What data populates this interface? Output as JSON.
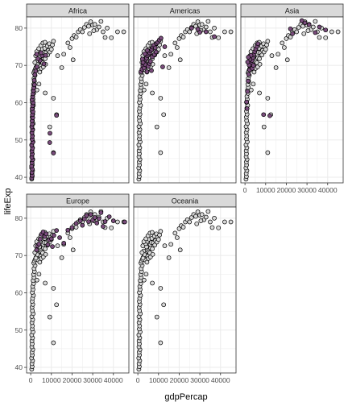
{
  "chart_data": {
    "type": "scatter",
    "layout": "facet_wrap",
    "xlabel": "gdpPercap",
    "ylabel": "lifeExp",
    "xlim": [
      -2000,
      47500
    ],
    "ylim": [
      38.5,
      83
    ],
    "x_ticks": [
      0,
      10000,
      20000,
      30000,
      40000
    ],
    "x_tick_labels": [
      "0",
      "10000",
      "20000",
      "30000",
      "40000"
    ],
    "y_ticks": [
      40,
      50,
      60,
      70,
      80
    ],
    "y_tick_labels": [
      "40",
      "50",
      "60",
      "70",
      "80"
    ],
    "grid": true,
    "facets": [
      "Africa",
      "Americas",
      "Asia",
      "Europe",
      "Oceania"
    ],
    "colors": {
      "background_point": "#d8d8d8",
      "highlight_point": "#7a4c7c",
      "point_outline": "#000000",
      "strip_fill": "#d9d9d9",
      "grid": "#ebebeb",
      "panel_border": "#333333"
    },
    "background_points": [
      [
        500,
        39.5
      ],
      [
        700,
        40.2
      ],
      [
        600,
        41
      ],
      [
        900,
        41.8
      ],
      [
        450,
        42.5
      ],
      [
        800,
        43.3
      ],
      [
        650,
        44.1
      ],
      [
        1000,
        44.8
      ],
      [
        550,
        45.5
      ],
      [
        750,
        46.3
      ],
      [
        600,
        47.1
      ],
      [
        900,
        47.9
      ],
      [
        500,
        48.7
      ],
      [
        1100,
        49.5
      ],
      [
        700,
        50.3
      ],
      [
        850,
        51.1
      ],
      [
        600,
        52
      ],
      [
        950,
        52.8
      ],
      [
        550,
        53.6
      ],
      [
        1200,
        54.4
      ],
      [
        800,
        55.2
      ],
      [
        650,
        56.1
      ],
      [
        1000,
        56.9
      ],
      [
        700,
        57.7
      ],
      [
        900,
        58.5
      ],
      [
        1300,
        59.3
      ],
      [
        750,
        60.1
      ],
      [
        1100,
        60.9
      ],
      [
        950,
        61.7
      ],
      [
        1400,
        62.5
      ],
      [
        1200,
        63.3
      ],
      [
        1600,
        64.1
      ],
      [
        1400,
        64.9
      ],
      [
        1800,
        65.7
      ],
      [
        1600,
        66.5
      ],
      [
        2100,
        67.3
      ],
      [
        1500,
        68
      ],
      [
        1800,
        68.5
      ],
      [
        2200,
        69
      ],
      [
        2600,
        69.5
      ],
      [
        3000,
        70
      ],
      [
        3500,
        70.5
      ],
      [
        4000,
        71
      ],
      [
        4500,
        71.5
      ],
      [
        5000,
        72
      ],
      [
        5500,
        72.5
      ],
      [
        6000,
        73
      ],
      [
        6500,
        73.5
      ],
      [
        2800,
        71.2
      ],
      [
        3300,
        70.2
      ],
      [
        4200,
        72.3
      ],
      [
        4800,
        69.8
      ],
      [
        5200,
        71
      ],
      [
        5800,
        70.7
      ],
      [
        6200,
        72
      ],
      [
        7000,
        71.8
      ],
      [
        2400,
        72.6
      ],
      [
        3800,
        73.2
      ],
      [
        4600,
        73.8
      ],
      [
        5400,
        74.4
      ],
      [
        6800,
        74.6
      ],
      [
        7500,
        73.4
      ],
      [
        8000,
        75.2
      ],
      [
        8500,
        74
      ],
      [
        9000,
        75.8
      ],
      [
        9500,
        74.8
      ],
      [
        10500,
        75.5
      ],
      [
        11000,
        76.5
      ],
      [
        3600,
        68.8
      ],
      [
        4400,
        68.2
      ],
      [
        5100,
        69.2
      ],
      [
        6100,
        69.6
      ],
      [
        7200,
        70.3
      ],
      [
        2900,
        73.7
      ],
      [
        3900,
        74.5
      ],
      [
        4900,
        75.3
      ],
      [
        5900,
        76
      ],
      [
        6900,
        76.2
      ],
      [
        2000,
        70.8
      ],
      [
        2500,
        69.3
      ],
      [
        8200,
        72.8
      ],
      [
        9200,
        73.6
      ],
      [
        10000,
        74.3
      ],
      [
        4000,
        65
      ],
      [
        3000,
        63.4
      ],
      [
        7000,
        62.6
      ],
      [
        11000,
        61.2
      ],
      [
        12500,
        56.8
      ],
      [
        9200,
        53.5
      ],
      [
        11000,
        46.6
      ],
      [
        15000,
        69.4
      ],
      [
        13000,
        72.6
      ],
      [
        16000,
        73
      ],
      [
        18000,
        76
      ],
      [
        20000,
        77.2
      ],
      [
        21000,
        78
      ],
      [
        22000,
        77.6
      ],
      [
        19000,
        74.8
      ],
      [
        23000,
        79
      ],
      [
        24000,
        79.6
      ],
      [
        25000,
        79
      ],
      [
        20500,
        71.5
      ],
      [
        26000,
        80.2
      ],
      [
        27000,
        81
      ],
      [
        28000,
        80.5
      ],
      [
        29000,
        81.7
      ],
      [
        30000,
        80.8
      ],
      [
        31000,
        81
      ],
      [
        32000,
        79.6
      ],
      [
        33000,
        80.3
      ],
      [
        34000,
        81.8
      ],
      [
        35000,
        79
      ],
      [
        36000,
        77.5
      ],
      [
        28500,
        78.5
      ],
      [
        30500,
        79.3
      ],
      [
        37000,
        80
      ],
      [
        39000,
        77.4
      ],
      [
        42000,
        79
      ],
      [
        45000,
        79
      ]
    ],
    "highlight_points": {
      "Africa": [
        [
          500,
          39.8
        ],
        [
          700,
          40.5
        ],
        [
          600,
          41.3
        ],
        [
          800,
          42.2
        ],
        [
          450,
          43
        ],
        [
          650,
          43.9
        ],
        [
          900,
          44.7
        ],
        [
          550,
          45.4
        ],
        [
          750,
          46.2
        ],
        [
          600,
          47
        ],
        [
          850,
          47.8
        ],
        [
          500,
          48.6
        ],
        [
          1000,
          49.4
        ],
        [
          700,
          50.2
        ],
        [
          800,
          51
        ],
        [
          600,
          51.9
        ],
        [
          900,
          52.7
        ],
        [
          550,
          53.5
        ],
        [
          750,
          54.3
        ],
        [
          650,
          55.1
        ],
        [
          1000,
          56
        ],
        [
          800,
          56.8
        ],
        [
          1100,
          57.6
        ],
        [
          700,
          58.4
        ],
        [
          900,
          59.2
        ],
        [
          1200,
          60
        ],
        [
          650,
          60.8
        ],
        [
          950,
          61.6
        ],
        [
          1100,
          62.4
        ],
        [
          1350,
          63.2
        ],
        [
          1500,
          64
        ],
        [
          1800,
          64.8
        ],
        [
          1700,
          66
        ],
        [
          2000,
          67.5
        ],
        [
          2400,
          68.5
        ],
        [
          3000,
          69.6
        ],
        [
          4500,
          71.3
        ],
        [
          5500,
          72.6
        ],
        [
          6400,
          70.4
        ],
        [
          3500,
          71.8
        ],
        [
          2900,
          73
        ],
        [
          5000,
          73.4
        ],
        [
          7200,
          72.7
        ],
        [
          11000,
          46.5
        ],
        [
          9200,
          49.3
        ],
        [
          12500,
          56.6
        ],
        [
          9300,
          51.8
        ]
      ],
      "Americas": [
        [
          1500,
          68.3
        ],
        [
          2000,
          69
        ],
        [
          2400,
          69.9
        ],
        [
          2800,
          70.6
        ],
        [
          3300,
          71.1
        ],
        [
          3800,
          71.6
        ],
        [
          4200,
          72
        ],
        [
          4700,
          72.6
        ],
        [
          5200,
          73
        ],
        [
          5700,
          73.4
        ],
        [
          6200,
          73.9
        ],
        [
          6700,
          74.3
        ],
        [
          7200,
          74.9
        ],
        [
          7800,
          75.4
        ],
        [
          8400,
          74.7
        ],
        [
          9000,
          75.9
        ],
        [
          9600,
          76.2
        ],
        [
          10400,
          76.8
        ],
        [
          11200,
          77.3
        ],
        [
          3000,
          69.3
        ],
        [
          3600,
          70.2
        ],
        [
          4400,
          68.3
        ],
        [
          5000,
          69.7
        ],
        [
          5600,
          70.5
        ],
        [
          6100,
          71.1
        ],
        [
          7000,
          72.3
        ],
        [
          8000,
          72.9
        ],
        [
          2500,
          70.8
        ],
        [
          3400,
          73.1
        ],
        [
          4600,
          74
        ],
        [
          6600,
          68.6
        ],
        [
          2200,
          71.7
        ],
        [
          8800,
          73.6
        ],
        [
          12000,
          69.6
        ],
        [
          13000,
          75
        ],
        [
          26000,
          80
        ],
        [
          30000,
          78.9
        ],
        [
          33000,
          79
        ],
        [
          37000,
          77.7
        ],
        [
          29000,
          79.7
        ]
      ],
      "Asia": [
        [
          800,
          60.2
        ],
        [
          1200,
          63
        ],
        [
          1500,
          65.8
        ],
        [
          1800,
          67.6
        ],
        [
          2200,
          68.8
        ],
        [
          2600,
          69.8
        ],
        [
          3000,
          70.5
        ],
        [
          3400,
          71.3
        ],
        [
          3800,
          72.1
        ],
        [
          4200,
          72.9
        ],
        [
          4700,
          73.7
        ],
        [
          5200,
          74.4
        ],
        [
          5800,
          75.1
        ],
        [
          6300,
          75.8
        ],
        [
          2000,
          70.1
        ],
        [
          2400,
          71.6
        ],
        [
          2900,
          72.7
        ],
        [
          3500,
          69.2
        ],
        [
          4100,
          70
        ],
        [
          1600,
          72.2
        ],
        [
          1300,
          70.9
        ],
        [
          1000,
          58.4
        ],
        [
          9000,
          56.8
        ],
        [
          12000,
          56.5
        ],
        [
          22000,
          79.8
        ],
        [
          27500,
          82
        ],
        [
          29000,
          81.4
        ],
        [
          31000,
          80.9
        ],
        [
          34000,
          78.8
        ],
        [
          39000,
          79.5
        ],
        [
          23000,
          78.5
        ],
        [
          36000,
          80.3
        ]
      ],
      "Europe": [
        [
          2800,
          71.5
        ],
        [
          3300,
          72.6
        ],
        [
          4000,
          73.1
        ],
        [
          4600,
          74.4
        ],
        [
          5200,
          75.7
        ],
        [
          6000,
          76.3
        ],
        [
          6800,
          75.1
        ],
        [
          7500,
          75.8
        ],
        [
          8300,
          72.9
        ],
        [
          9000,
          74.2
        ],
        [
          10000,
          74.5
        ],
        [
          10500,
          72.4
        ],
        [
          11200,
          75.4
        ],
        [
          12500,
          76.7
        ],
        [
          14000,
          74.8
        ],
        [
          16000,
          73.3
        ],
        [
          18000,
          76.8
        ],
        [
          20000,
          77.5
        ],
        [
          22000,
          78.6
        ],
        [
          24000,
          79.3
        ],
        [
          25000,
          78.1
        ],
        [
          26000,
          79.8
        ],
        [
          27000,
          80.7
        ],
        [
          28000,
          79.1
        ],
        [
          29000,
          81
        ],
        [
          30000,
          79.5
        ],
        [
          31000,
          80.2
        ],
        [
          32000,
          78.7
        ],
        [
          33000,
          79.9
        ],
        [
          34000,
          81.5
        ],
        [
          35000,
          77.8
        ],
        [
          36000,
          79.1
        ],
        [
          38000,
          80.4
        ],
        [
          40000,
          79.3
        ],
        [
          45500,
          79
        ]
      ],
      "Oceania": []
    }
  }
}
